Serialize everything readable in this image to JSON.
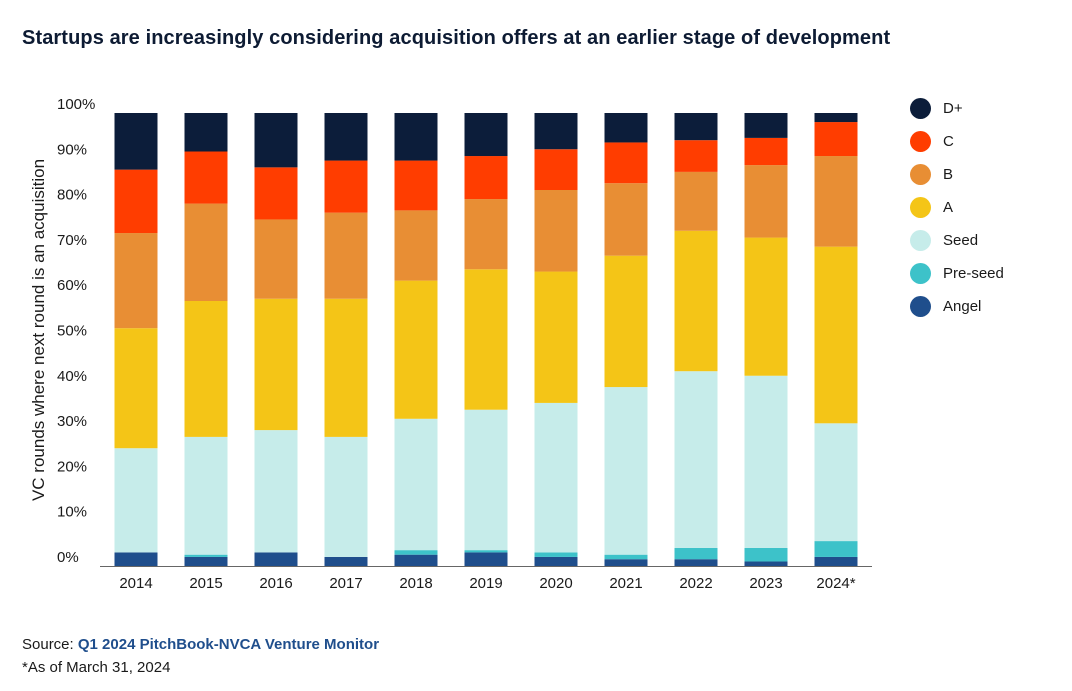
{
  "title": "Startups are increasingly considering acquisition offers at an earlier stage of development",
  "chart_data": {
    "type": "bar",
    "stacked": true,
    "categories": [
      "2014",
      "2015",
      "2016",
      "2017",
      "2018",
      "2019",
      "2020",
      "2021",
      "2022",
      "2023",
      "2024*"
    ],
    "ylabel": "VC rounds where next round is an acquisition",
    "xlabel": "",
    "ylim": [
      0,
      100
    ],
    "yticks": [
      0,
      10,
      20,
      30,
      40,
      50,
      60,
      70,
      80,
      90,
      100
    ],
    "ytick_labels": [
      "0%",
      "10%",
      "20%",
      "30%",
      "40%",
      "50%",
      "60%",
      "70%",
      "80%",
      "90%",
      "100%"
    ],
    "grid": false,
    "legend_position": "right",
    "series": [
      {
        "name": "Angel",
        "color": "#1f4e8c",
        "values": [
          3.0,
          2.0,
          3.0,
          2.0,
          2.5,
          3.0,
          2.0,
          1.5,
          1.5,
          1.0,
          2.0
        ]
      },
      {
        "name": "Pre-seed",
        "color": "#3dc2c9",
        "values": [
          0.0,
          0.5,
          0.0,
          0.0,
          1.0,
          0.5,
          1.0,
          1.0,
          2.5,
          3.0,
          3.5
        ]
      },
      {
        "name": "Seed",
        "color": "#c6ecea",
        "values": [
          23.0,
          26.0,
          27.0,
          26.5,
          29.0,
          31.0,
          33.0,
          37.0,
          39.0,
          38.0,
          26.0
        ]
      },
      {
        "name": "A",
        "color": "#f4c517",
        "values": [
          26.5,
          30.0,
          29.0,
          30.5,
          30.5,
          31.0,
          29.0,
          29.0,
          31.0,
          30.5,
          39.0
        ]
      },
      {
        "name": "B",
        "color": "#e88e34",
        "values": [
          21.0,
          21.5,
          17.5,
          19.0,
          15.5,
          15.5,
          18.0,
          16.0,
          13.0,
          16.0,
          20.0
        ]
      },
      {
        "name": "C",
        "color": "#ff3d00",
        "values": [
          14.0,
          11.5,
          11.5,
          11.5,
          11.0,
          9.5,
          9.0,
          9.0,
          7.0,
          6.0,
          7.5
        ]
      },
      {
        "name": "D+",
        "color": "#0c1d3a",
        "values": [
          12.5,
          8.5,
          12.0,
          10.5,
          10.5,
          9.5,
          8.0,
          6.5,
          6.0,
          5.5,
          2.0
        ]
      }
    ]
  },
  "legend": [
    {
      "label": "D+",
      "color": "#0c1d3a"
    },
    {
      "label": "C",
      "color": "#ff3d00"
    },
    {
      "label": "B",
      "color": "#e88e34"
    },
    {
      "label": "A",
      "color": "#f4c517"
    },
    {
      "label": "Seed",
      "color": "#c6ecea"
    },
    {
      "label": "Pre-seed",
      "color": "#3dc2c9"
    },
    {
      "label": "Angel",
      "color": "#1f4e8c"
    }
  ],
  "source": {
    "prefix": "Source: ",
    "link_text": "Q1 2024 PitchBook-NVCA Venture Monitor"
  },
  "footnote": "*As of March 31, 2024"
}
